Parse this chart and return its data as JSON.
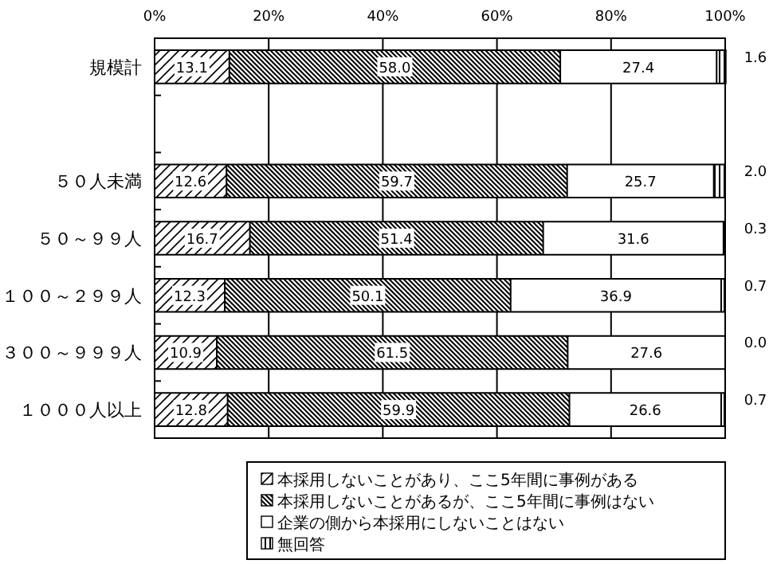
{
  "chart_data": {
    "type": "bar",
    "orientation": "horizontal",
    "stacked": true,
    "categories": [
      "規模計",
      null,
      "５０人未満",
      "５０～９９人",
      "１００～２９９人",
      "３００～９９９人",
      "１０００人以上"
    ],
    "series": [
      {
        "name": "本採用しないことがあり、ここ5年間に事例がある",
        "color": "#000000",
        "values": [
          13.1,
          null,
          12.6,
          16.7,
          12.3,
          10.9,
          12.8
        ],
        "value_labels": [
          "13.1",
          null,
          "12.6",
          "16.7",
          "12.3",
          "10.9",
          "12.8"
        ]
      },
      {
        "name": "本採用しないことがあるが、ここ5年間に事例はない",
        "color": "#000000",
        "values": [
          58.0,
          null,
          59.7,
          51.4,
          50.1,
          61.5,
          59.9
        ],
        "value_labels": [
          "58.0",
          null,
          "59.7",
          "51.4",
          "50.1",
          "61.5",
          "59.9"
        ]
      },
      {
        "name": "企業の側から本採用にしないことはない",
        "color": "#ffffff",
        "values": [
          27.4,
          null,
          25.7,
          31.6,
          36.9,
          27.6,
          26.6
        ],
        "value_labels": [
          "27.4",
          null,
          "25.7",
          "31.6",
          "36.9",
          "27.6",
          "26.6"
        ]
      },
      {
        "name": "無回答",
        "color": "#000000",
        "values": [
          1.6,
          null,
          2.0,
          0.3,
          0.7,
          0.0,
          0.7
        ],
        "value_labels": [
          "1.6",
          null,
          "2.0",
          "0.3",
          "0.7",
          "0.0",
          "0.7"
        ]
      }
    ],
    "xlim": [
      0,
      100
    ],
    "xticks": [
      {
        "value": 0,
        "label": "0%"
      },
      {
        "value": 20,
        "label": "20%"
      },
      {
        "value": 40,
        "label": "40%"
      },
      {
        "value": 60,
        "label": "60%"
      },
      {
        "value": 80,
        "label": "80%"
      },
      {
        "value": 100,
        "label": "100%"
      }
    ],
    "grid": "x",
    "legend": "bottom",
    "data_labels": true
  }
}
